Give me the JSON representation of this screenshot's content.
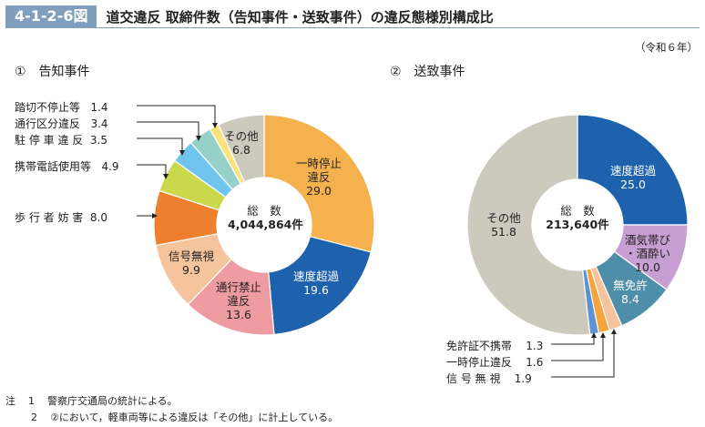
{
  "header": {
    "figure_no": "4-1-2-6図",
    "title": "道交違反 取締件数（告知事件・送致事件）の違反態様別構成比",
    "era": "（令和６年）"
  },
  "chart_data": [
    {
      "type": "pie",
      "title": "①　告知事件",
      "center_label": "総　数",
      "total": "4,044,864件",
      "slices": [
        {
          "name": "一時停止違反",
          "value": 29.0,
          "color": "#f5b14e"
        },
        {
          "name": "速度超過",
          "value": 19.6,
          "color": "#1e62ae"
        },
        {
          "name": "通行禁止違反",
          "value": 13.6,
          "color": "#ee9ba2"
        },
        {
          "name": "信号無視",
          "value": 9.9,
          "color": "#f6c49c"
        },
        {
          "name": "歩行者妨害",
          "value": 8.0,
          "color": "#ee7f2c"
        },
        {
          "name": "携帯電話使用等",
          "value": 4.9,
          "color": "#c9d94b"
        },
        {
          "name": "駐停車違反",
          "value": 3.5,
          "color": "#6fc5ee"
        },
        {
          "name": "通行区分違反",
          "value": 3.4,
          "color": "#95d1c9"
        },
        {
          "name": "踏切不停止等",
          "value": 1.4,
          "color": "#f8e37c"
        },
        {
          "name": "その他",
          "value": 6.8,
          "color": "#cbcabd"
        }
      ]
    },
    {
      "type": "pie",
      "title": "②　送致事件",
      "center_label": "総　数",
      "total": "213,640件",
      "slices": [
        {
          "name": "速度超過",
          "value": 25.0,
          "color": "#1e62ae"
        },
        {
          "name": "酒気帯び・酒酔い",
          "value": 10.0,
          "color": "#c89fd3"
        },
        {
          "name": "無免許",
          "value": 8.4,
          "color": "#4e8ea9"
        },
        {
          "name": "信号無視",
          "value": 1.9,
          "color": "#f6c49c"
        },
        {
          "name": "一時停止違反",
          "value": 1.6,
          "color": "#f5a53c"
        },
        {
          "name": "免許証不携帯",
          "value": 1.3,
          "color": "#5d92d3"
        },
        {
          "name": "その他",
          "value": 51.8,
          "color": "#cbcabd"
        }
      ]
    }
  ],
  "labels": {
    "l_ichiji": [
      "一時停止",
      "違反",
      "29.0"
    ],
    "l_sokudo": [
      "速度超過",
      "19.6"
    ],
    "l_tsuko": [
      "通行禁止",
      "違反",
      "13.6"
    ],
    "l_shingo": [
      "信号無視",
      "9.9"
    ],
    "l_sonota": [
      "その他",
      "6.8"
    ],
    "l_fumikiri": [
      "踏切不停止等",
      "1.4"
    ],
    "l_kubun": [
      "通行区分違反",
      "3.4"
    ],
    "l_chutei": [
      "駐 停 車 違 反",
      "3.5"
    ],
    "l_keitai": [
      "携帯電話使用等",
      "4.9"
    ],
    "l_hokosha": [
      "歩 行 者 妨 害",
      "8.0"
    ],
    "r_sokudo": [
      "速度超過",
      "25.0"
    ],
    "r_shuki": [
      "酒気帯び",
      "・酒酔い",
      "10.0"
    ],
    "r_mumenkyo": [
      "無免許",
      "8.4"
    ],
    "r_sonota": [
      "その他",
      "51.8"
    ],
    "r_fukeitai": [
      "免許証不携帯",
      "1.3"
    ],
    "r_ichiji": [
      "一時停止違反",
      "1.6"
    ],
    "r_shingo": [
      "信 号 無 視",
      "1.9"
    ]
  },
  "notes": [
    [
      "注",
      "1",
      "警察庁交通局の統計による。"
    ],
    [
      "",
      "2",
      "②において，軽車両等による違反は「その他」に計上している。"
    ]
  ]
}
